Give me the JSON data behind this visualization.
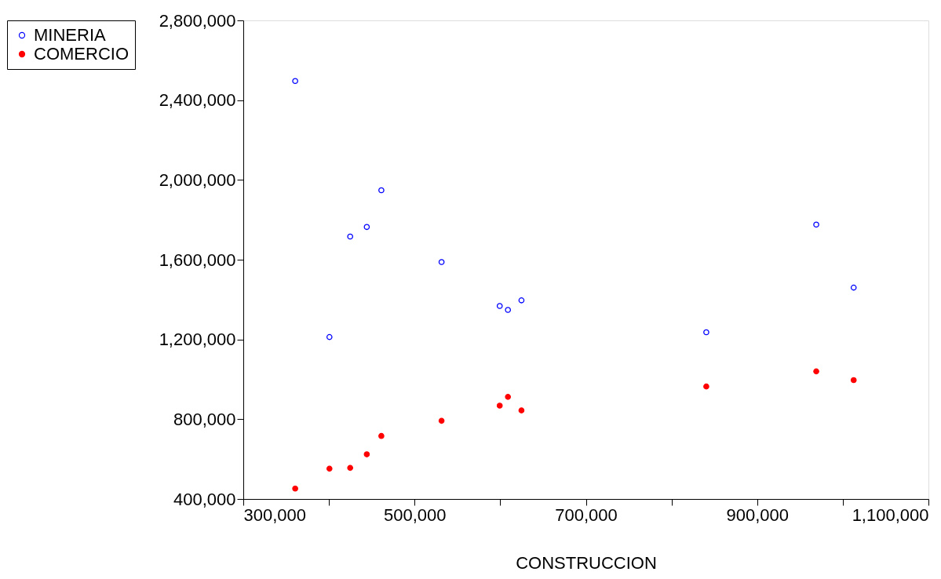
{
  "chart_data": {
    "type": "scatter",
    "xlabel": "CONSTRUCCION",
    "x": [
      360600,
      400600,
      424800,
      444200,
      461200,
      531500,
      599400,
      609000,
      624800,
      840600,
      969000,
      1012700
    ],
    "series": [
      {
        "name": "MINERIA",
        "color": "#0000ff",
        "values": [
          2496000,
          1212000,
          1716000,
          1764000,
          1948000,
          1588000,
          1368000,
          1348000,
          1396000,
          1236000,
          1776000,
          1460000
        ]
      },
      {
        "name": "COMERCIO",
        "color": "#ff0000",
        "values": [
          452000,
          552000,
          556000,
          624000,
          716000,
          792000,
          868000,
          912000,
          844000,
          964000,
          1040000,
          996000
        ]
      }
    ],
    "xlim": [
      300000,
      1100000
    ],
    "xticks": [
      {
        "value": 300000,
        "label": "300,000"
      },
      {
        "value": 400000,
        "label": null
      },
      {
        "value": 500000,
        "label": "500,000"
      },
      {
        "value": 600000,
        "label": null
      },
      {
        "value": 700000,
        "label": "700,000"
      },
      {
        "value": 800000,
        "label": null
      },
      {
        "value": 900000,
        "label": "900,000"
      },
      {
        "value": 1000000,
        "label": null
      },
      {
        "value": 1100000,
        "label": "1,100,000"
      }
    ],
    "ylim": [
      400000,
      2800000
    ],
    "yticks": [
      {
        "value": 400000,
        "label": "400,000"
      },
      {
        "value": 800000,
        "label": "800,000"
      },
      {
        "value": 1200000,
        "label": "1,200,000"
      },
      {
        "value": 1600000,
        "label": "1,600,000"
      },
      {
        "value": 2000000,
        "label": "2,000,000"
      },
      {
        "value": 2400000,
        "label": "2,400,000"
      },
      {
        "value": 2800000,
        "label": "2,800,000"
      }
    ],
    "marker": "circle",
    "grid": false,
    "legend": "left"
  }
}
